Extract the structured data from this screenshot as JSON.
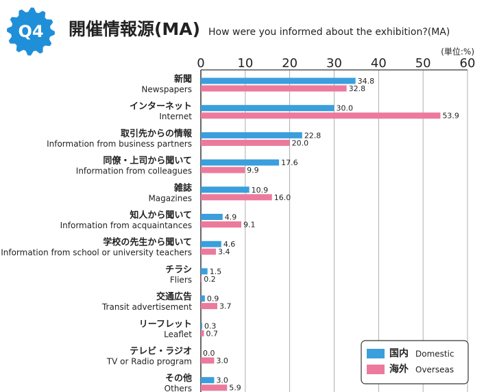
{
  "chart_data": {
    "type": "hbar",
    "badge": "Q4",
    "title": "開催情報源(MA)",
    "subtitle": "How were you informed about the exhibition?(MA)",
    "unit": "(単位:%)",
    "categories": [
      "新聞",
      "インターネット",
      "取引先からの情報",
      "同僚・上司から聞いて",
      "雑誌",
      "知人から聞いて",
      "学校の先生から聞いて",
      "チラシ",
      "交通広告",
      "リーフレット",
      "テレビ・ラジオ",
      "その他"
    ],
    "categories_en": [
      "Newspapers",
      "Internet",
      "Information from business partners",
      "Information from colleagues",
      "Magazines",
      "Information from acquaintances",
      "Information from school or university teachers",
      "Fliers",
      "Transit advertisement",
      "Leaflet",
      "TV or Radio program",
      "Others"
    ],
    "series": [
      {
        "name": "国内",
        "name_en": "Domestic",
        "color": "#3a9fdc",
        "values": [
          34.8,
          30.0,
          22.8,
          17.6,
          10.9,
          4.9,
          4.6,
          1.5,
          0.9,
          0.3,
          0.0,
          3.0
        ],
        "value_labels": [
          "34.8",
          "30.0",
          "22.8",
          "17.6",
          "10.9",
          "4.9",
          "4.6",
          "1.5",
          "0.9",
          "0.3",
          "0.0",
          "3.0"
        ]
      },
      {
        "name": "海外",
        "name_en": "Overseas",
        "color": "#ec7a9c",
        "values": [
          32.8,
          53.9,
          20.0,
          9.9,
          16.0,
          9.1,
          3.4,
          0.2,
          3.7,
          0.7,
          3.0,
          5.9
        ],
        "value_labels": [
          "32.8",
          "53.9",
          "20.0",
          "9.9",
          "16.0",
          "9.1",
          "3.4",
          "0.2",
          "3.7",
          "0.7",
          "3.0",
          "5.9"
        ]
      }
    ],
    "xlim": [
      0,
      60
    ],
    "xticks": [
      0,
      10,
      20,
      30,
      40,
      50,
      60
    ],
    "grid": true,
    "legend": "lower right"
  }
}
